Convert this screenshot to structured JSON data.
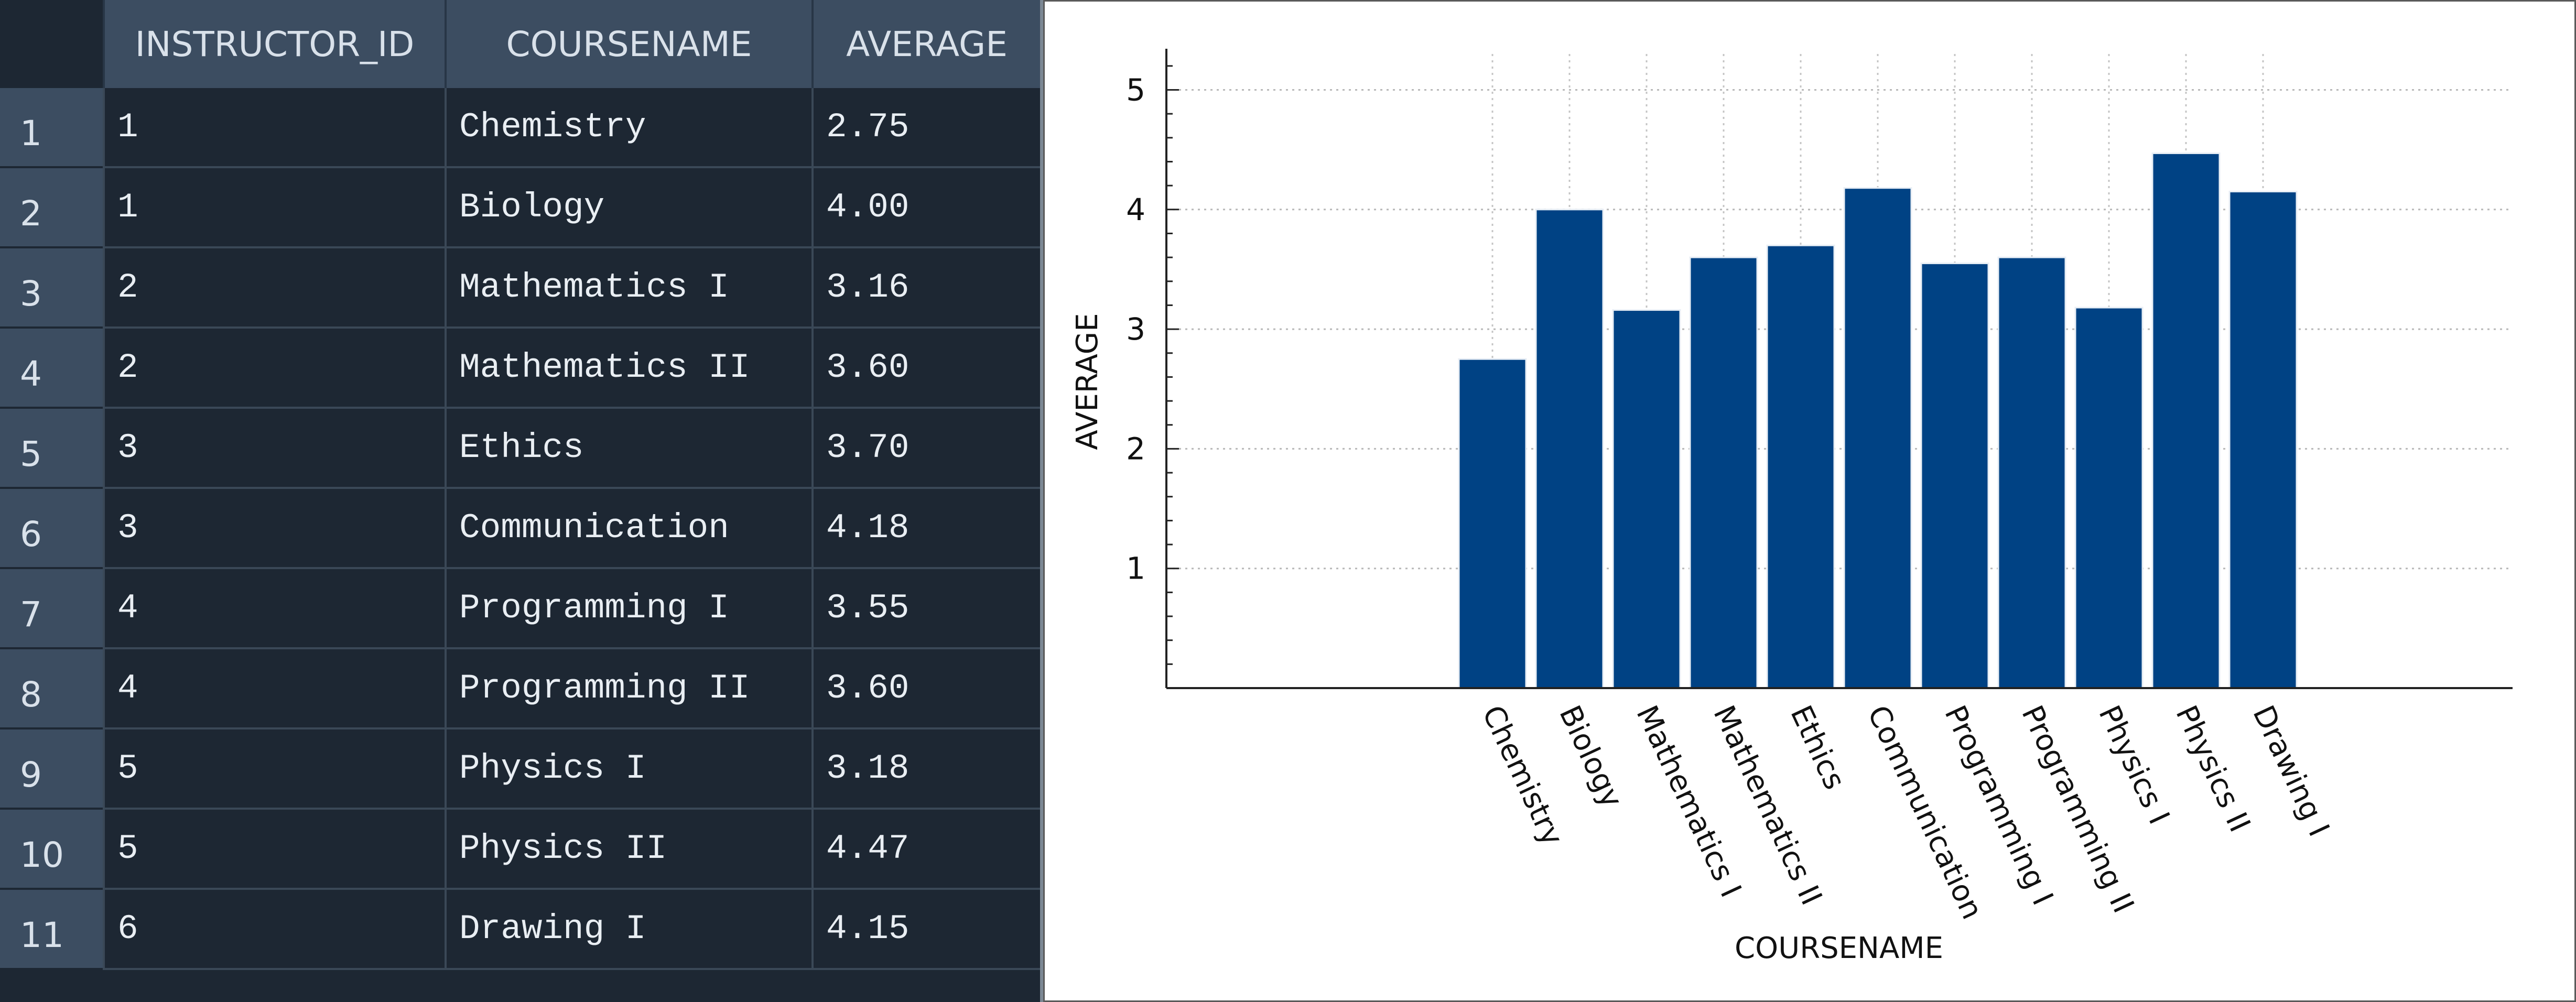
{
  "grid": {
    "columns": [
      "INSTRUCTOR_ID",
      "COURSENAME",
      "AVERAGE"
    ],
    "rows": [
      {
        "num": "1",
        "instructor_id": "1",
        "coursename": "Chemistry",
        "average": "2.75"
      },
      {
        "num": "2",
        "instructor_id": "1",
        "coursename": "Biology",
        "average": "4.00"
      },
      {
        "num": "3",
        "instructor_id": "2",
        "coursename": "Mathematics I",
        "average": "3.16"
      },
      {
        "num": "4",
        "instructor_id": "2",
        "coursename": "Mathematics II",
        "average": "3.60"
      },
      {
        "num": "5",
        "instructor_id": "3",
        "coursename": "Ethics",
        "average": "3.70"
      },
      {
        "num": "6",
        "instructor_id": "3",
        "coursename": "Communication",
        "average": "4.18"
      },
      {
        "num": "7",
        "instructor_id": "4",
        "coursename": "Programming I",
        "average": "3.55"
      },
      {
        "num": "8",
        "instructor_id": "4",
        "coursename": "Programming II",
        "average": "3.60"
      },
      {
        "num": "9",
        "instructor_id": "5",
        "coursename": "Physics I",
        "average": "3.18"
      },
      {
        "num": "10",
        "instructor_id": "5",
        "coursename": "Physics II",
        "average": "4.47"
      },
      {
        "num": "11",
        "instructor_id": "6",
        "coursename": "Drawing I",
        "average": "4.15"
      }
    ]
  },
  "chart_data": {
    "type": "bar",
    "categories": [
      "Chemistry",
      "Biology",
      "Mathematics I",
      "Mathematics II",
      "Ethics",
      "Communication",
      "Programming I",
      "Programming II",
      "Physics I",
      "Physics II",
      "Drawing I"
    ],
    "values": [
      2.75,
      4.0,
      3.16,
      3.6,
      3.7,
      4.18,
      3.55,
      3.6,
      3.18,
      4.47,
      4.15
    ],
    "xlabel": "COURSENAME",
    "ylabel": "AVERAGE",
    "ylim": [
      0,
      5.3
    ],
    "yticks": [
      1,
      2,
      3,
      4,
      5
    ],
    "grid": true,
    "bar_color": "#004284",
    "bar_edge_color": "#e8eef5"
  }
}
